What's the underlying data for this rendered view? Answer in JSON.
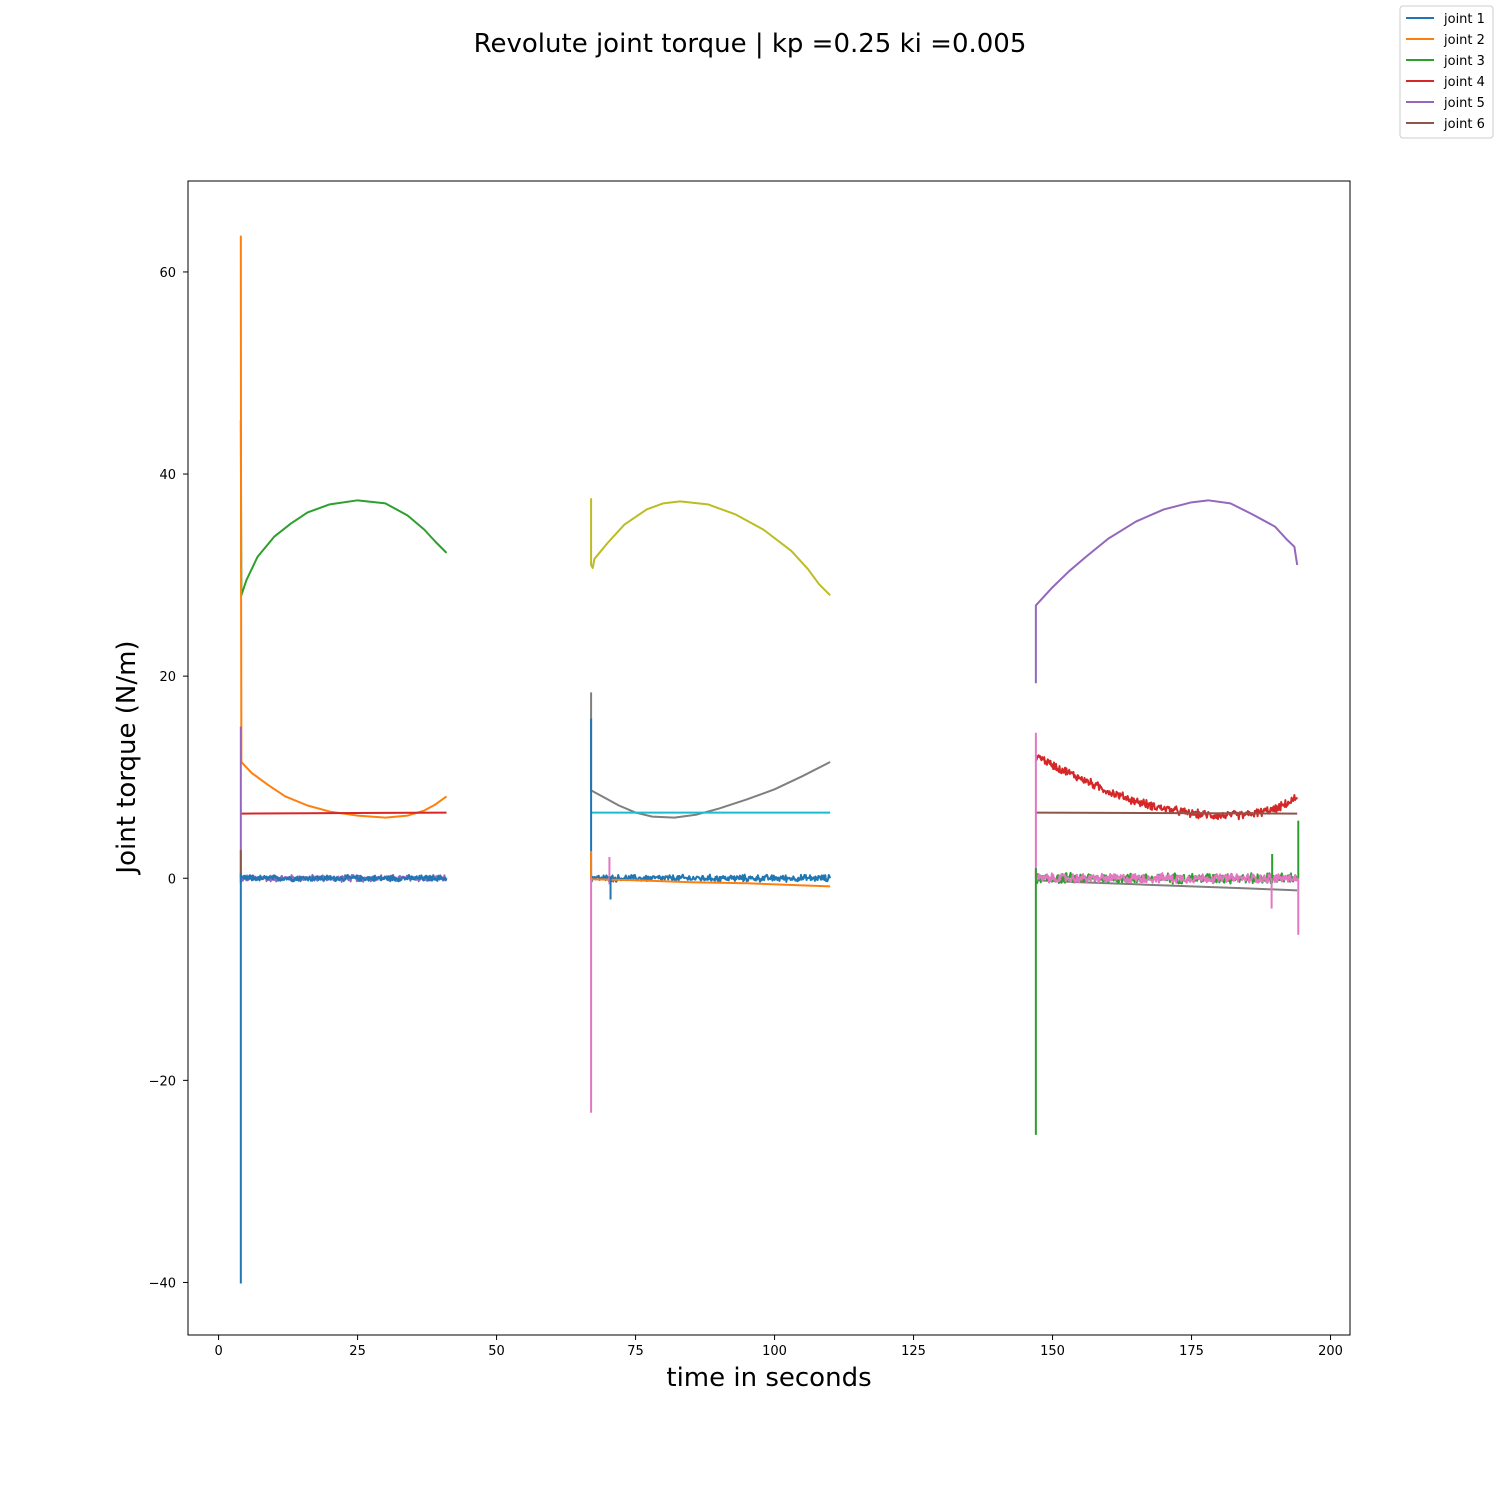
{
  "chart_data": {
    "type": "line",
    "title": "Revolute joint torque | kp =0.25 ki =0.005",
    "xlabel": "time in seconds",
    "ylabel": "Joint torque (N/m)",
    "xlim": [
      -5.5,
      203.5
    ],
    "ylim": [
      -45.2,
      69.0
    ],
    "xticks": [
      0,
      25,
      50,
      75,
      100,
      125,
      150,
      175,
      200
    ],
    "xtick_labels": [
      "0",
      "25",
      "50",
      "75",
      "100",
      "125",
      "150",
      "175",
      "200"
    ],
    "yticks": [
      -40,
      -20,
      0,
      20,
      40,
      60
    ],
    "ytick_labels": [
      "−40",
      "−20",
      "0",
      "20",
      "40",
      "60"
    ],
    "grid": false,
    "legend_position": "top-right (outside axes)",
    "legend": [
      {
        "label": "joint 1",
        "color": "#1f77b4"
      },
      {
        "label": "joint 2",
        "color": "#ff7f0e"
      },
      {
        "label": "joint 3",
        "color": "#2ca02c"
      },
      {
        "label": "joint 4",
        "color": "#d62728"
      },
      {
        "label": "joint 5",
        "color": "#9467bd"
      },
      {
        "label": "joint 6",
        "color": "#8c564b"
      }
    ],
    "series": [
      {
        "color": "#2ca02c",
        "noise": 0,
        "points": [
          [
            4,
            45.3
          ],
          [
            4.1,
            28.0
          ],
          [
            5,
            29.5
          ],
          [
            7,
            31.8
          ],
          [
            10,
            33.8
          ],
          [
            13,
            35.1
          ],
          [
            16,
            36.2
          ],
          [
            20,
            37.0
          ],
          [
            25,
            37.4
          ],
          [
            30,
            37.1
          ],
          [
            34,
            35.9
          ],
          [
            37,
            34.5
          ],
          [
            39,
            33.3
          ],
          [
            41,
            32.2
          ]
        ]
      },
      {
        "color": "#ff7f0e",
        "noise": 0,
        "points": [
          [
            4,
            63.6
          ],
          [
            4.05,
            28.0
          ],
          [
            4.1,
            11.5
          ],
          [
            6,
            10.4
          ],
          [
            9,
            9.2
          ],
          [
            12,
            8.1
          ],
          [
            16,
            7.2
          ],
          [
            20,
            6.6
          ],
          [
            25,
            6.2
          ],
          [
            30,
            6.0
          ],
          [
            34,
            6.2
          ],
          [
            37,
            6.7
          ],
          [
            39,
            7.3
          ],
          [
            41,
            8.1
          ]
        ]
      },
      {
        "color": "#d62728",
        "noise": 0,
        "points": [
          [
            4,
            6.4
          ],
          [
            41,
            6.5
          ]
        ]
      },
      {
        "color": "#9467bd",
        "noise": 0.4,
        "points": [
          [
            4,
            0
          ],
          [
            41,
            0
          ]
        ]
      },
      {
        "color": "#1f77b4",
        "noise": 0.35,
        "points": [
          [
            4,
            0
          ],
          [
            41,
            0
          ]
        ]
      },
      {
        "color": "#9467bd",
        "noise": 0,
        "points": [
          [
            4,
            15
          ],
          [
            4,
            0
          ]
        ]
      },
      {
        "color": "#8c564b",
        "noise": 0,
        "points": [
          [
            4,
            2.8
          ],
          [
            4,
            -0.5
          ]
        ]
      },
      {
        "color": "#1f77b4",
        "noise": 0,
        "points": [
          [
            4,
            0.5
          ],
          [
            4,
            -40.1
          ]
        ]
      },
      {
        "color": "#bcbd22",
        "noise": 0,
        "points": [
          [
            67,
            37.6
          ],
          [
            67,
            31.0
          ],
          [
            67.3,
            30.7
          ],
          [
            67.6,
            31.6
          ],
          [
            70,
            33.2
          ],
          [
            73,
            35.0
          ],
          [
            77,
            36.5
          ],
          [
            80,
            37.1
          ],
          [
            83,
            37.3
          ],
          [
            88,
            37.0
          ],
          [
            93,
            36.0
          ],
          [
            98,
            34.5
          ],
          [
            103,
            32.4
          ],
          [
            106,
            30.6
          ],
          [
            108,
            29.1
          ],
          [
            110,
            28.0
          ]
        ]
      },
      {
        "color": "#7f7f7f",
        "noise": 0,
        "points": [
          [
            67,
            18.4
          ],
          [
            67,
            8.7
          ],
          [
            69,
            8.1
          ],
          [
            72,
            7.2
          ],
          [
            75,
            6.5
          ],
          [
            78,
            6.1
          ],
          [
            82,
            6.0
          ],
          [
            86,
            6.3
          ],
          [
            90,
            6.9
          ],
          [
            95,
            7.8
          ],
          [
            100,
            8.8
          ],
          [
            105,
            10.1
          ],
          [
            110,
            11.5
          ]
        ]
      },
      {
        "color": "#17becf",
        "noise": 0,
        "points": [
          [
            67,
            6.5
          ],
          [
            110,
            6.5
          ]
        ]
      },
      {
        "color": "#1f77b4",
        "noise": 0,
        "points": [
          [
            67,
            15.8
          ],
          [
            67,
            0
          ]
        ]
      },
      {
        "color": "#1f77b4",
        "noise": 0.4,
        "points": [
          [
            67,
            0
          ],
          [
            110,
            0
          ]
        ]
      },
      {
        "color": "#ff7f0e",
        "noise": 0,
        "points": [
          [
            67,
            2.7
          ],
          [
            67,
            -0.1
          ],
          [
            75,
            -0.2
          ],
          [
            85,
            -0.4
          ],
          [
            95,
            -0.5
          ],
          [
            105,
            -0.7
          ],
          [
            110,
            -0.8
          ]
        ]
      },
      {
        "color": "#e377c2",
        "noise": 0,
        "points": [
          [
            67,
            0
          ],
          [
            67,
            -23.2
          ]
        ]
      },
      {
        "color": "#e377c2",
        "noise": 0,
        "points": [
          [
            70.3,
            2.1
          ],
          [
            70.3,
            -0.6
          ]
        ]
      },
      {
        "color": "#1f77b4",
        "noise": 0,
        "points": [
          [
            70.5,
            0.2
          ],
          [
            70.5,
            -2.1
          ]
        ]
      },
      {
        "color": "#9467bd",
        "noise": 0,
        "points": [
          [
            147,
            19.3
          ],
          [
            147,
            27.0
          ],
          [
            148,
            27.6
          ],
          [
            150,
            28.8
          ],
          [
            153,
            30.4
          ],
          [
            156,
            31.8
          ],
          [
            160,
            33.6
          ],
          [
            165,
            35.3
          ],
          [
            170,
            36.5
          ],
          [
            175,
            37.2
          ],
          [
            178,
            37.4
          ],
          [
            182,
            37.1
          ],
          [
            186,
            36.0
          ],
          [
            190,
            34.8
          ],
          [
            192,
            33.6
          ],
          [
            193.5,
            32.8
          ],
          [
            194,
            31.0
          ]
        ]
      },
      {
        "color": "#d62728",
        "noise": 0.5,
        "points": [
          [
            147,
            12.2
          ],
          [
            150,
            11.2
          ],
          [
            155,
            9.9
          ],
          [
            160,
            8.6
          ],
          [
            165,
            7.6
          ],
          [
            170,
            6.9
          ],
          [
            175,
            6.4
          ],
          [
            180,
            6.2
          ],
          [
            185,
            6.3
          ],
          [
            190,
            6.8
          ],
          [
            193,
            7.6
          ],
          [
            194,
            8.0
          ]
        ]
      },
      {
        "color": "#8c564b",
        "noise": 0,
        "points": [
          [
            147,
            6.5
          ],
          [
            194,
            6.4
          ]
        ]
      },
      {
        "color": "#7f7f7f",
        "noise": 0,
        "points": [
          [
            147,
            -0.2
          ],
          [
            155,
            -0.4
          ],
          [
            165,
            -0.6
          ],
          [
            175,
            -0.8
          ],
          [
            185,
            -1.0
          ],
          [
            194,
            -1.2
          ]
        ]
      },
      {
        "color": "#2ca02c",
        "noise": 0.6,
        "points": [
          [
            147,
            0
          ],
          [
            194,
            0
          ]
        ]
      },
      {
        "color": "#e377c2",
        "noise": 0.55,
        "points": [
          [
            147,
            0
          ],
          [
            194,
            0
          ]
        ]
      },
      {
        "color": "#e377c2",
        "noise": 0,
        "points": [
          [
            147,
            14.4
          ],
          [
            147,
            0
          ]
        ]
      },
      {
        "color": "#2ca02c",
        "noise": 0,
        "points": [
          [
            147,
            1.0
          ],
          [
            147,
            -25.4
          ]
        ]
      },
      {
        "color": "#2ca02c",
        "noise": 0,
        "points": [
          [
            194.2,
            5.7
          ],
          [
            194.2,
            0
          ]
        ]
      },
      {
        "color": "#e377c2",
        "noise": 0,
        "points": [
          [
            194.2,
            0
          ],
          [
            194.2,
            -5.6
          ]
        ]
      },
      {
        "color": "#2ca02c",
        "noise": 0,
        "points": [
          [
            189.5,
            2.4
          ],
          [
            189.5,
            -0.5
          ]
        ]
      },
      {
        "color": "#e377c2",
        "noise": 0,
        "points": [
          [
            189.4,
            0
          ],
          [
            189.4,
            -3.0
          ]
        ]
      }
    ]
  }
}
